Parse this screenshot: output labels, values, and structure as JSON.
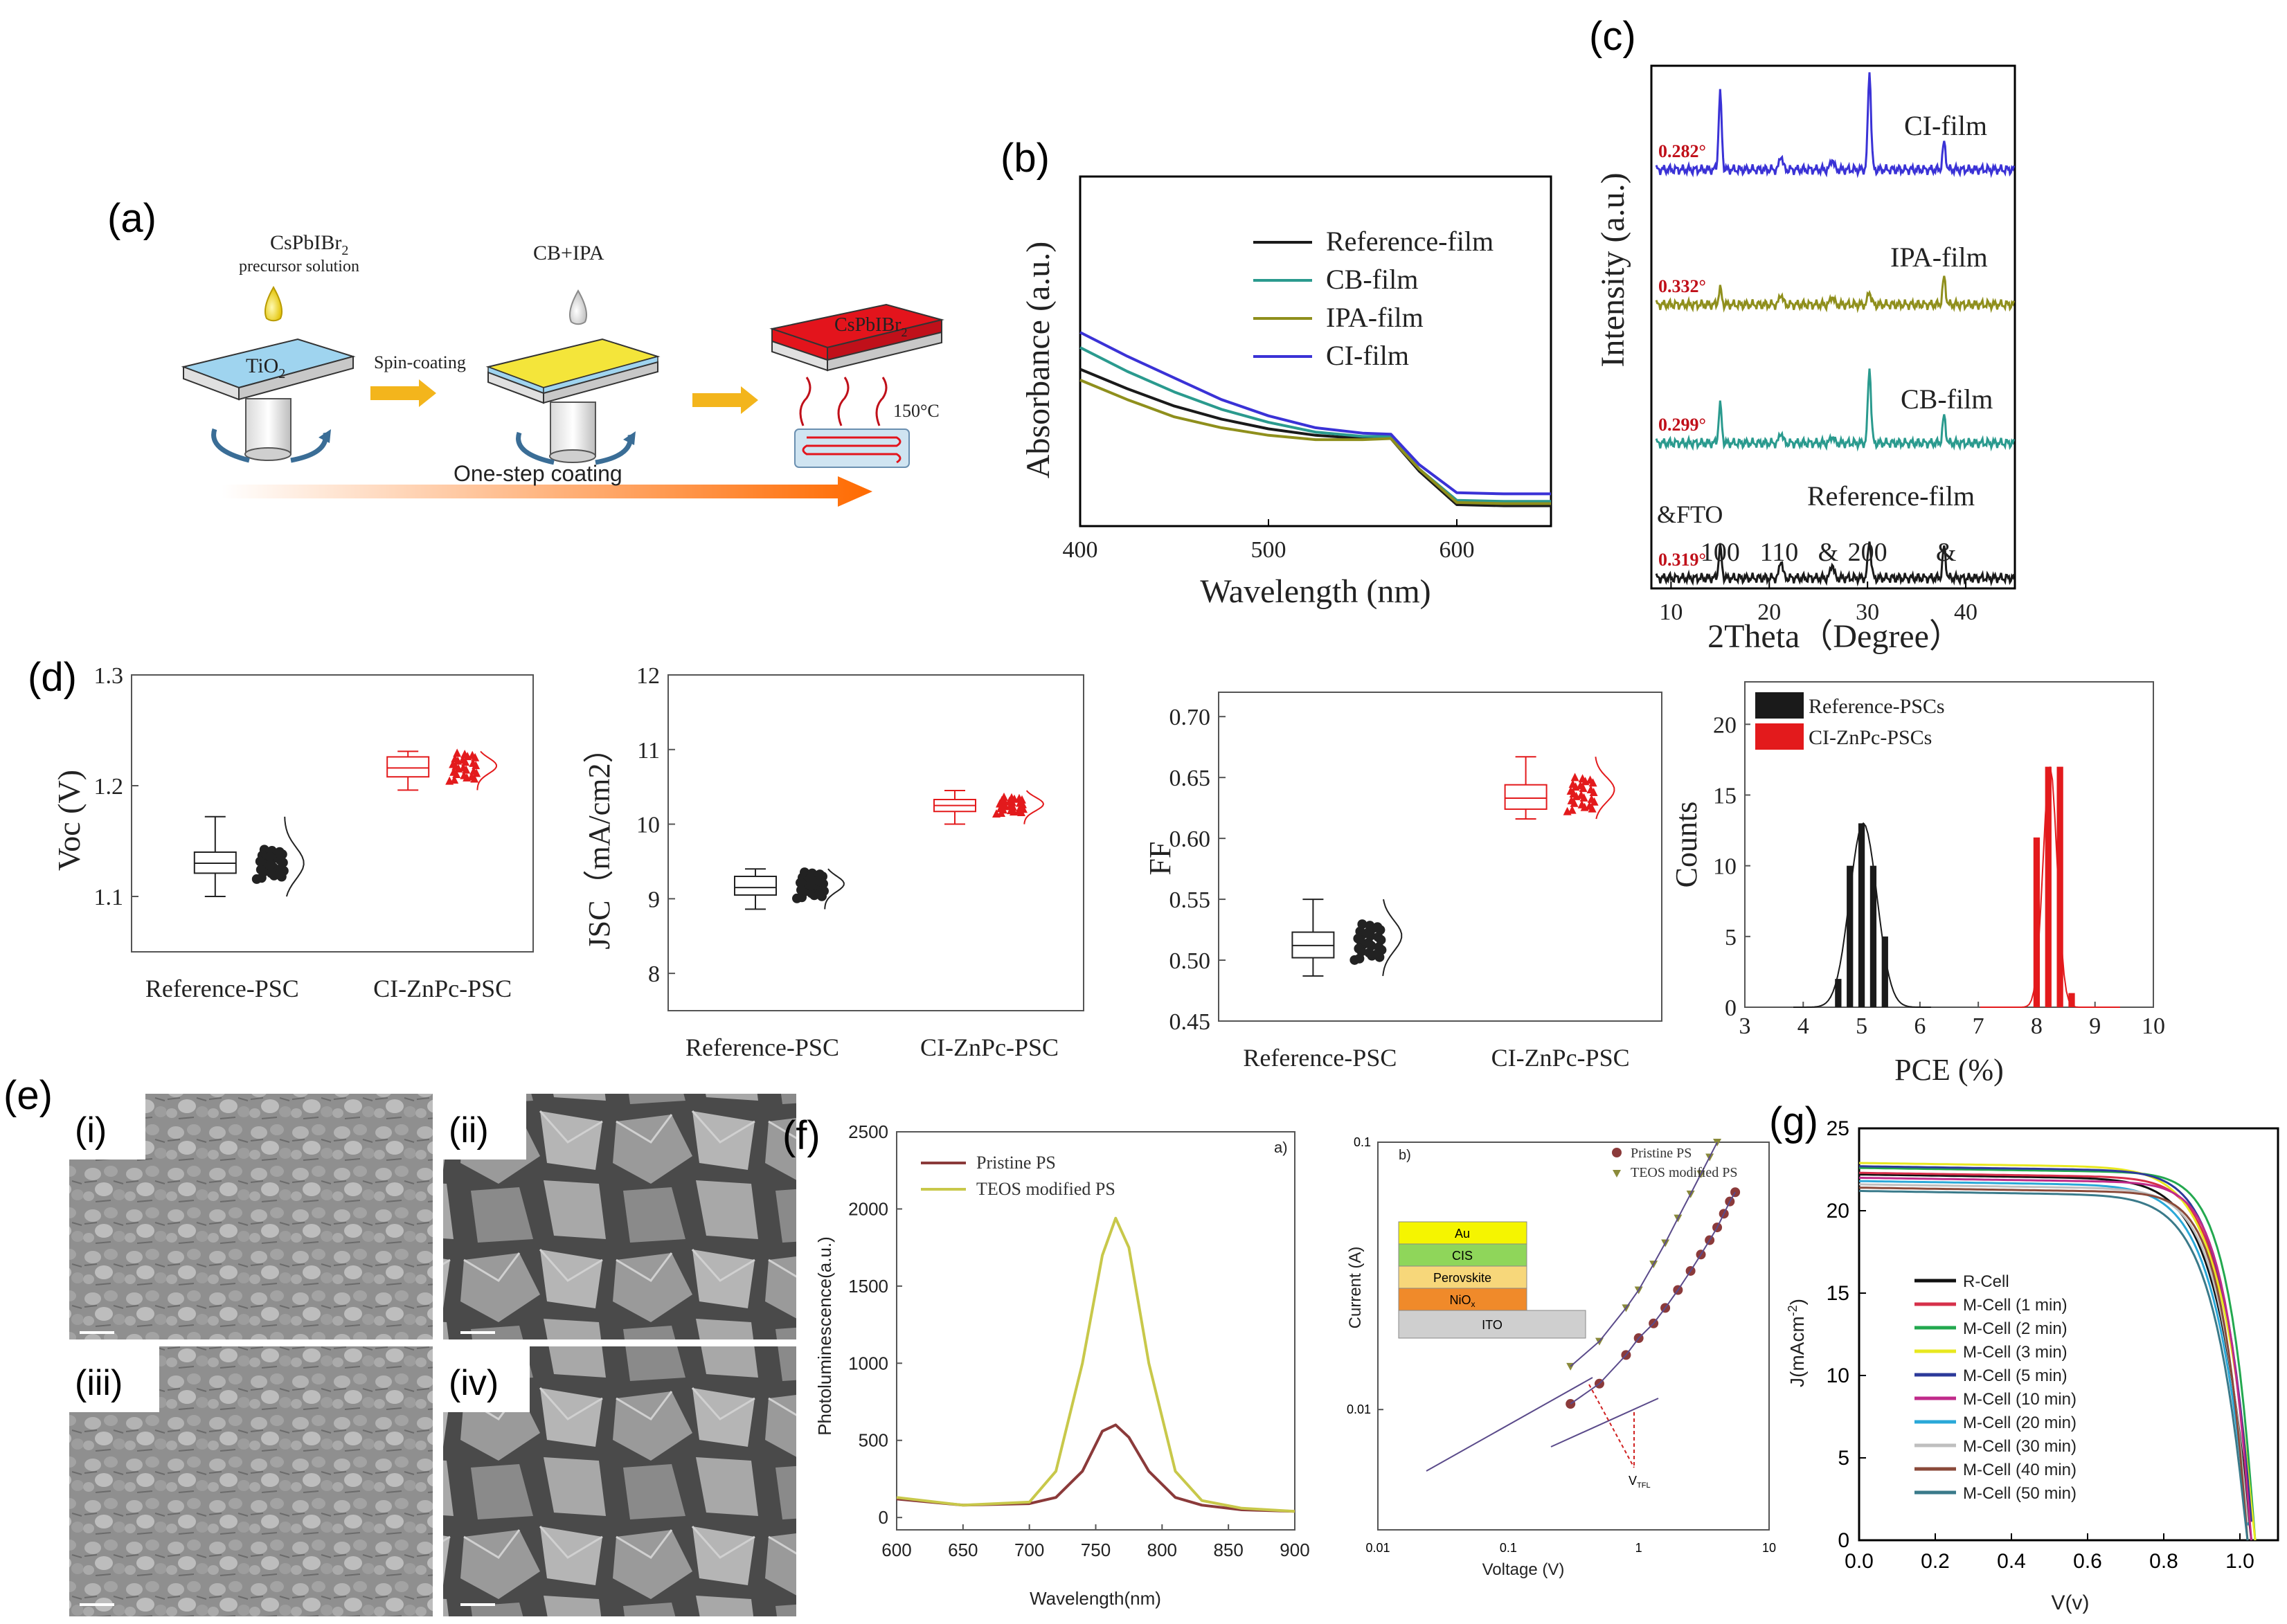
{
  "panels": {
    "a": {
      "label": "(a)",
      "precursor": "CsPbIBr",
      "precursor_sub": "2",
      "precursor_note": "precursor solution",
      "antisolvent": "CB+IPA",
      "substrate": "TiO",
      "substrate_sub": "2",
      "spin": "Spin-coating",
      "film": "CsPbIBr",
      "film_sub": "2",
      "temp": "150°C",
      "bar": "One-step coating"
    },
    "b": {
      "label": "(b)"
    },
    "c": {
      "label": "(c)",
      "fto_label": "&FTO"
    },
    "d": {
      "label": "(d)"
    },
    "e": {
      "label": "(e)",
      "tiles": [
        "(i)",
        "(ii)",
        "(iii)",
        "(iv)"
      ]
    },
    "f": {
      "label": "(f)",
      "sub_a": "a)",
      "sub_b": "b)",
      "vtfl": "V",
      "vtfl_sub": "TFL",
      "stack": [
        "Au",
        "CIS",
        "Perovskite",
        "NiO",
        "ITO"
      ],
      "nio_sub": "x"
    },
    "g": {
      "label": "(g)"
    }
  },
  "colors": {
    "reference": "#1a1a1a",
    "cb": "#2a9a8e",
    "ipa": "#8f8f1c",
    "ci": "#3a32d6",
    "red": "#e31a1c",
    "pristine": "#8b3a3a",
    "teos": "#c8c84a"
  },
  "chart_data": [
    {
      "id": "b",
      "type": "line",
      "xlabel": "Wavelength (nm)",
      "ylabel": "Absorbance (a.u.)",
      "xlim": [
        400,
        650
      ],
      "xticks": [
        400,
        500,
        600
      ],
      "series": [
        {
          "name": "Reference-film",
          "x": [
            400,
            425,
            450,
            475,
            500,
            525,
            550,
            565,
            580,
            600,
            625,
            650
          ],
          "y": [
            0.66,
            0.57,
            0.49,
            0.43,
            0.385,
            0.355,
            0.34,
            0.34,
            0.19,
            0.035,
            0.03,
            0.03
          ]
        },
        {
          "name": "CB-film",
          "x": [
            400,
            425,
            450,
            475,
            500,
            525,
            550,
            565,
            580,
            600,
            625,
            650
          ],
          "y": [
            0.76,
            0.65,
            0.555,
            0.475,
            0.415,
            0.37,
            0.35,
            0.35,
            0.2,
            0.055,
            0.05,
            0.05
          ]
        },
        {
          "name": "IPA-film",
          "x": [
            400,
            425,
            450,
            475,
            500,
            525,
            550,
            565,
            580,
            600,
            625,
            650
          ],
          "y": [
            0.61,
            0.52,
            0.44,
            0.39,
            0.355,
            0.335,
            0.335,
            0.34,
            0.2,
            0.045,
            0.04,
            0.04
          ]
        },
        {
          "name": "CI-film",
          "x": [
            400,
            425,
            450,
            475,
            500,
            525,
            550,
            565,
            580,
            600,
            625,
            650
          ],
          "y": [
            0.83,
            0.72,
            0.62,
            0.52,
            0.445,
            0.39,
            0.365,
            0.36,
            0.22,
            0.09,
            0.085,
            0.085
          ]
        }
      ]
    },
    {
      "id": "c",
      "type": "line",
      "xlabel": "2Theta（Degree）",
      "ylabel": "Intensity (a.u.)",
      "xlim": [
        8,
        45
      ],
      "xticks": [
        10,
        20,
        30,
        40
      ],
      "peak_labels": [
        {
          "x": 15,
          "text": "100"
        },
        {
          "x": 21,
          "text": "110"
        },
        {
          "x": 26,
          "text": "&"
        },
        {
          "x": 30,
          "text": "200"
        },
        {
          "x": 38,
          "text": "&"
        }
      ],
      "series": [
        {
          "name": "CI-film",
          "fwhm": "0.282°",
          "peaks": [
            [
              15,
              1.0
            ],
            [
              21.2,
              0.2
            ],
            [
              26.4,
              0.15
            ],
            [
              30.2,
              1.3
            ],
            [
              37.8,
              0.35
            ]
          ]
        },
        {
          "name": "IPA-film",
          "fwhm": "0.332°",
          "peaks": [
            [
              15,
              0.2
            ],
            [
              21.2,
              0.15
            ],
            [
              26.4,
              0.12
            ],
            [
              30.2,
              0.18
            ],
            [
              37.8,
              0.35
            ]
          ]
        },
        {
          "name": "CB-film",
          "fwhm": "0.299°",
          "peaks": [
            [
              15,
              0.5
            ],
            [
              21.2,
              0.15
            ],
            [
              26.4,
              0.1
            ],
            [
              30.2,
              1.0
            ],
            [
              37.8,
              0.35
            ]
          ]
        },
        {
          "name": "Reference-film",
          "fwhm": "0.319°",
          "peaks": [
            [
              15,
              0.4
            ],
            [
              21.2,
              0.25
            ],
            [
              26.4,
              0.2
            ],
            [
              30.2,
              0.5
            ],
            [
              37.8,
              0.4
            ]
          ]
        }
      ]
    },
    {
      "id": "d1",
      "type": "box",
      "ylabel": "V",
      "ylabel_sub": "oc",
      "ylabel_unit": " (V)",
      "ylim": [
        1.05,
        1.3
      ],
      "yticks": [
        1.1,
        1.2,
        1.3
      ],
      "ytick_labels": [
        "1.1",
        "1.2",
        "1.3"
      ],
      "categories": [
        "Reference-PSC",
        "CI-ZnPc-PSC"
      ],
      "boxes": [
        {
          "min": 1.1,
          "q1": 1.121,
          "median": 1.13,
          "q3": 1.14,
          "max": 1.172,
          "center": 1.13
        },
        {
          "min": 1.196,
          "q1": 1.208,
          "median": 1.216,
          "q3": 1.226,
          "max": 1.231,
          "center": 1.218
        }
      ]
    },
    {
      "id": "d2",
      "type": "box",
      "ylabel": "J",
      "ylabel_sub": "SC",
      "ylabel_unit": "（mA/cm",
      "ylabel_sup": "2",
      "ylabel_end": "）",
      "ylim": [
        7.5,
        12
      ],
      "yticks": [
        8,
        9,
        10,
        11,
        12
      ],
      "ytick_labels": [
        "8",
        "9",
        "10",
        "11",
        "12"
      ],
      "categories": [
        "Reference-PSC",
        "CI-ZnPc-PSC"
      ],
      "boxes": [
        {
          "min": 8.86,
          "q1": 9.05,
          "median": 9.15,
          "q3": 9.3,
          "max": 9.4,
          "center": 9.2
        },
        {
          "min": 10.0,
          "q1": 10.17,
          "median": 10.25,
          "q3": 10.33,
          "max": 10.45,
          "center": 10.27
        }
      ]
    },
    {
      "id": "d3",
      "type": "box",
      "ylabel": "FF",
      "ylim": [
        0.45,
        0.72
      ],
      "yticks": [
        0.45,
        0.5,
        0.55,
        0.6,
        0.65,
        0.7
      ],
      "ytick_labels": [
        "0.45",
        "0.50",
        "0.55",
        "0.60",
        "0.65",
        "0.70"
      ],
      "categories": [
        "Reference-PSC",
        "CI-ZnPc-PSC"
      ],
      "boxes": [
        {
          "min": 0.487,
          "q1": 0.502,
          "median": 0.512,
          "q3": 0.523,
          "max": 0.55,
          "center": 0.52
        },
        {
          "min": 0.616,
          "q1": 0.624,
          "median": 0.633,
          "q3": 0.644,
          "max": 0.667,
          "center": 0.64
        }
      ]
    },
    {
      "id": "d4",
      "type": "bar",
      "xlabel": "PCE (%)",
      "ylabel": "Counts",
      "xlim": [
        3,
        10
      ],
      "ylim": [
        0,
        23
      ],
      "xticks": [
        3,
        4,
        5,
        6,
        7,
        8,
        9,
        10
      ],
      "xtick_labels": [
        "3",
        "4",
        "5",
        "6",
        "7",
        "8",
        "9",
        "10"
      ],
      "yticks": [
        0,
        5,
        10,
        15,
        20
      ],
      "series": [
        {
          "name": "Reference-PSCs",
          "x": [
            4.6,
            4.8,
            5.0,
            5.2,
            5.4
          ],
          "values": [
            2,
            10,
            13,
            10,
            5
          ]
        },
        {
          "name": "CI-ZnPc-PSCs",
          "x": [
            8.0,
            8.2,
            8.4,
            8.6
          ],
          "values": [
            12,
            17,
            17,
            1
          ]
        }
      ]
    },
    {
      "id": "f1",
      "type": "line",
      "xlabel": "Wavelength(nm)",
      "ylabel": "Photoluminescence(a.u.)",
      "xlim": [
        600,
        900
      ],
      "ylim": [
        -80,
        2500
      ],
      "xticks": [
        600,
        650,
        700,
        750,
        800,
        850,
        900
      ],
      "yticks": [
        0,
        500,
        1000,
        1500,
        2000,
        2500
      ],
      "series": [
        {
          "name": "Pristine PS",
          "x": [
            600,
            650,
            700,
            720,
            740,
            755,
            765,
            775,
            790,
            810,
            830,
            860,
            900
          ],
          "y": [
            120,
            80,
            90,
            130,
            300,
            560,
            600,
            520,
            300,
            130,
            80,
            50,
            40
          ]
        },
        {
          "name": "TEOS modified PS",
          "x": [
            600,
            650,
            700,
            720,
            740,
            755,
            765,
            775,
            790,
            810,
            830,
            860,
            900
          ],
          "y": [
            130,
            80,
            100,
            300,
            1000,
            1700,
            1940,
            1750,
            1000,
            300,
            110,
            60,
            40
          ]
        }
      ]
    },
    {
      "id": "f2",
      "type": "scatter",
      "xlabel": "Voltage (V)",
      "ylabel": "Current (A)",
      "xscale": "log",
      "yscale": "log",
      "xtick_labels": [
        "0.01",
        "0.1",
        "1",
        "10"
      ],
      "ytick_labels": [
        "0.01",
        "0.1"
      ],
      "series": [
        {
          "name": "Pristine PS",
          "x": [
            0.3,
            0.5,
            0.8,
            1.0,
            1.3,
            1.6,
            2.0,
            2.5,
            3.0,
            3.5,
            4.0,
            4.5,
            5.0,
            5.5
          ],
          "y": [
            0.0105,
            0.0125,
            0.016,
            0.0185,
            0.021,
            0.024,
            0.028,
            0.033,
            0.038,
            0.043,
            0.048,
            0.054,
            0.06,
            0.065
          ]
        },
        {
          "name": "TEOS modified PS",
          "x": [
            0.3,
            0.5,
            0.8,
            1.0,
            1.3,
            1.6,
            2.0,
            2.5,
            3.0,
            3.5,
            4.0
          ],
          "y": [
            0.0145,
            0.018,
            0.024,
            0.028,
            0.035,
            0.042,
            0.052,
            0.064,
            0.076,
            0.088,
            0.1
          ]
        }
      ]
    },
    {
      "id": "g",
      "type": "line",
      "xlabel": "V(v)",
      "ylabel": "J(mAcm",
      "ylabel_sup": "-2",
      "ylabel_end": ")",
      "xlim": [
        0,
        1.1
      ],
      "ylim": [
        0,
        25
      ],
      "xticks": [
        0,
        0.2,
        0.4,
        0.6,
        0.8,
        1.0
      ],
      "xtick_labels": [
        "0.0",
        "0.2",
        "0.4",
        "0.6",
        "0.8",
        "1.0"
      ],
      "yticks": [
        0,
        5,
        10,
        15,
        20,
        25
      ],
      "series": [
        {
          "name": "R-Cell",
          "jsc": 22.2,
          "voc": 1.03,
          "color": "#111111"
        },
        {
          "name": "M-Cell (1 min)",
          "jsc": 22.3,
          "voc": 1.035,
          "color": "#d6304a"
        },
        {
          "name": "M-Cell (2 min)",
          "jsc": 22.6,
          "voc": 1.04,
          "color": "#23a84f"
        },
        {
          "name": "M-Cell (3 min)",
          "jsc": 22.9,
          "voc": 1.04,
          "color": "#e8e820"
        },
        {
          "name": "M-Cell (5 min)",
          "jsc": 22.7,
          "voc": 1.035,
          "color": "#2c3a9a"
        },
        {
          "name": "M-Cell (10 min)",
          "jsc": 22.0,
          "voc": 1.03,
          "color": "#c02a8a"
        },
        {
          "name": "M-Cell (20 min)",
          "jsc": 21.8,
          "voc": 1.025,
          "color": "#2aa8d8"
        },
        {
          "name": "M-Cell (30 min)",
          "jsc": 21.6,
          "voc": 1.025,
          "color": "#bfbfbf"
        },
        {
          "name": "M-Cell (40 min)",
          "jsc": 21.4,
          "voc": 1.02,
          "color": "#8a4a3a"
        },
        {
          "name": "M-Cell (50 min)",
          "jsc": 21.2,
          "voc": 1.02,
          "color": "#3a7a8a"
        }
      ]
    }
  ]
}
